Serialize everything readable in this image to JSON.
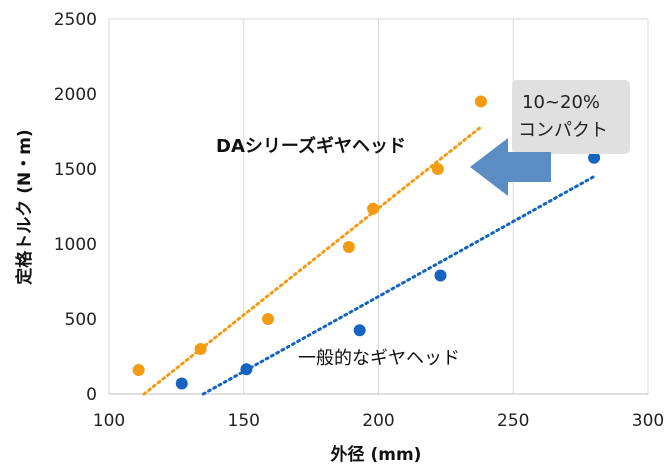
{
  "chart_data": {
    "type": "scatter",
    "xlabel": "外径 (mm)",
    "ylabel": "定格トルク (N・m)",
    "xlim": [
      100,
      300
    ],
    "ylim": [
      0,
      2500
    ],
    "xticks": [
      100,
      150,
      200,
      250,
      300
    ],
    "yticks": [
      0,
      500,
      1000,
      1500,
      2000,
      2500
    ],
    "grid": "vertical",
    "series": [
      {
        "name": "DAシリーズギヤヘッド",
        "color": "#F39C12",
        "x": [
          111,
          134,
          159,
          189,
          198,
          222,
          238
        ],
        "y": [
          160,
          300,
          500,
          980,
          1235,
          1500,
          1950
        ],
        "trendline": {
          "x": [
            113,
            238
          ],
          "y": [
            0,
            1780
          ]
        }
      },
      {
        "name": "一般的なギヤヘッド",
        "color": "#1565C0",
        "x": [
          127,
          151,
          193,
          223,
          280
        ],
        "y": [
          70,
          165,
          425,
          790,
          1575
        ],
        "trendline": {
          "x": [
            135,
            280
          ],
          "y": [
            0,
            1450
          ]
        }
      }
    ],
    "annotations": {
      "callout_line1": "10~20%",
      "callout_line2": "コンパクト",
      "callout_box_color": "#E0E0E0",
      "arrow_color": "#5B8CC4"
    }
  }
}
